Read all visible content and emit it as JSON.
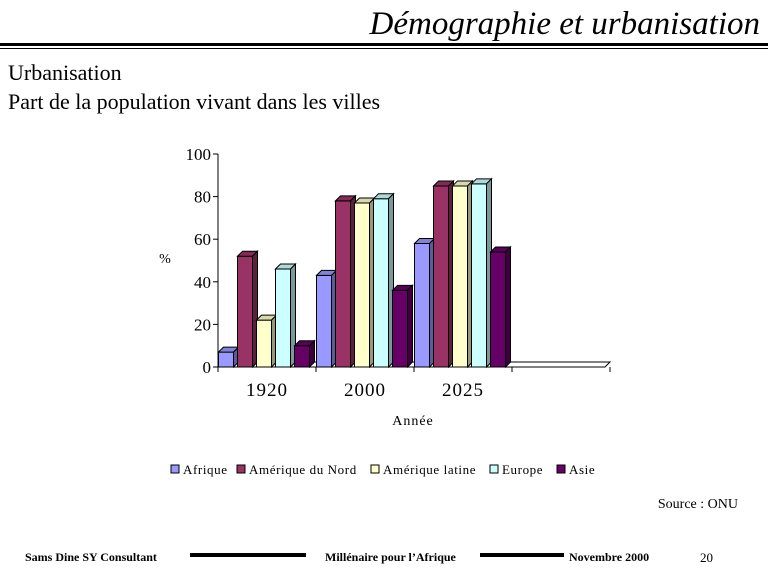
{
  "header": {
    "title": "Démographie et urbanisation"
  },
  "heading": {
    "line1": "Urbanisation",
    "line2": "Part de la population vivant dans les villes"
  },
  "chart_data": {
    "type": "bar",
    "variant": "3d-clustered",
    "categories": [
      "1920",
      "2000",
      "2025"
    ],
    "series": [
      {
        "name": "Afrique",
        "values": [
          7,
          43,
          58
        ],
        "color": "#9999ff"
      },
      {
        "name": "Amérique du Nord",
        "values": [
          52,
          78,
          85
        ],
        "color": "#993366"
      },
      {
        "name": "Amérique latine",
        "values": [
          22,
          77,
          85
        ],
        "color": "#ffffcc"
      },
      {
        "name": "Europe",
        "values": [
          46,
          79,
          86
        ],
        "color": "#ccffff"
      },
      {
        "name": "Asie",
        "values": [
          10,
          36,
          54
        ],
        "color": "#660066"
      }
    ],
    "xlabel": "Année",
    "ylabel": "%",
    "ylim": [
      0,
      100
    ],
    "yticks": [
      0,
      20,
      40,
      60,
      80,
      100
    ],
    "grid": false,
    "legend": "bottom"
  },
  "source": "Source : ONU",
  "footer": {
    "left": "Sams Dine SY Consultant",
    "center": "Millénaire pour l’Afrique",
    "right": "Novembre 2000",
    "page": "20"
  }
}
